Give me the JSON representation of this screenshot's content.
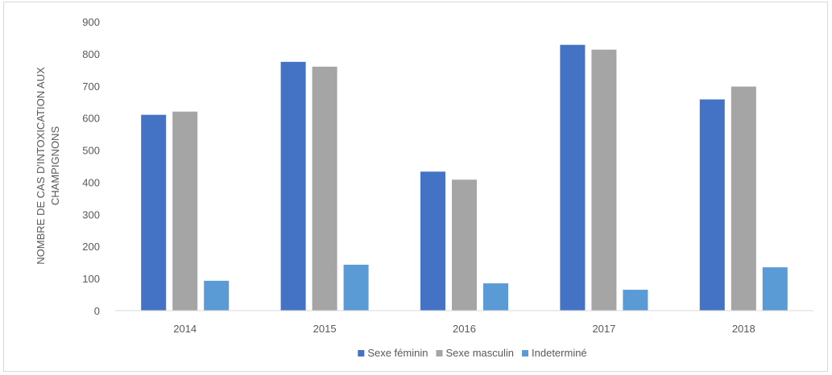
{
  "chart_data": {
    "type": "bar",
    "title": "",
    "xlabel": "",
    "ylabel_lines": [
      "NOMBRE DE CAS D'INTOXICATION AUX",
      "CHAMPIGNONS"
    ],
    "categories": [
      "2014",
      "2015",
      "2016",
      "2017",
      "2018"
    ],
    "ylim": [
      0,
      900
    ],
    "yticks": [
      0,
      100,
      200,
      300,
      400,
      500,
      600,
      700,
      800,
      900
    ],
    "grid": false,
    "legend_position": "bottom",
    "series": [
      {
        "name": "Sexe féminin",
        "color": "#4472C4",
        "values": [
          610,
          775,
          433,
          828,
          658
        ]
      },
      {
        "name": "Sexe masculin",
        "color": "#A5A5A5",
        "values": [
          620,
          760,
          408,
          813,
          698
        ]
      },
      {
        "name": "Indeterminé",
        "color": "#5B9BD5",
        "values": [
          93,
          143,
          85,
          65,
          135
        ]
      }
    ]
  }
}
